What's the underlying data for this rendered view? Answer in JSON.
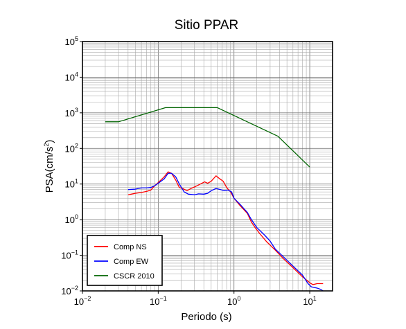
{
  "chart_data": {
    "type": "line",
    "title": "Sitio PPAR",
    "xlabel": "Periodo (s)",
    "ylabel": "PSA(cm/s²)",
    "ylabel_parts": {
      "base": "PSA(cm/s",
      "sup": "2",
      "end": ")"
    },
    "xscale": "log",
    "yscale": "log",
    "xlim": [
      0.01,
      20
    ],
    "ylim": [
      0.01,
      100000
    ],
    "grid": true,
    "legend_position": "bottom-left",
    "x_ticks": [
      {
        "value": 0.01,
        "base": "10",
        "exp": "−2"
      },
      {
        "value": 0.1,
        "base": "10",
        "exp": "−1"
      },
      {
        "value": 1,
        "base": "10",
        "exp": "0"
      },
      {
        "value": 10,
        "base": "10",
        "exp": "1"
      }
    ],
    "y_ticks": [
      {
        "value": 0.01,
        "base": "10",
        "exp": "−2"
      },
      {
        "value": 0.1,
        "base": "10",
        "exp": "−1"
      },
      {
        "value": 1,
        "base": "10",
        "exp": "0"
      },
      {
        "value": 10,
        "base": "10",
        "exp": "1"
      },
      {
        "value": 100,
        "base": "10",
        "exp": "2"
      },
      {
        "value": 1000,
        "base": "10",
        "exp": "3"
      },
      {
        "value": 10000,
        "base": "10",
        "exp": "4"
      },
      {
        "value": 100000,
        "base": "10",
        "exp": "5"
      }
    ],
    "series": [
      {
        "name": "Comp NS",
        "color": "#ff0000",
        "points": [
          [
            0.04,
            5
          ],
          [
            0.05,
            5.5
          ],
          [
            0.06,
            5.8
          ],
          [
            0.07,
            6.2
          ],
          [
            0.08,
            6.8
          ],
          [
            0.09,
            9
          ],
          [
            0.1,
            11
          ],
          [
            0.12,
            16
          ],
          [
            0.135,
            22
          ],
          [
            0.15,
            20
          ],
          [
            0.17,
            13
          ],
          [
            0.19,
            8
          ],
          [
            0.21,
            7.5
          ],
          [
            0.24,
            6.5
          ],
          [
            0.27,
            7.5
          ],
          [
            0.31,
            8.5
          ],
          [
            0.36,
            10
          ],
          [
            0.41,
            11.5
          ],
          [
            0.45,
            10.5
          ],
          [
            0.5,
            12
          ],
          [
            0.58,
            17
          ],
          [
            0.65,
            14
          ],
          [
            0.72,
            12
          ],
          [
            0.8,
            8
          ],
          [
            0.9,
            6
          ],
          [
            1,
            4
          ],
          [
            1.2,
            2.5
          ],
          [
            1.5,
            1.5
          ],
          [
            1.7,
            0.85
          ],
          [
            1.9,
            0.6
          ],
          [
            2.2,
            0.4
          ],
          [
            2.7,
            0.24
          ],
          [
            3.5,
            0.14
          ],
          [
            4.5,
            0.08
          ],
          [
            6,
            0.045
          ],
          [
            8,
            0.025
          ],
          [
            10,
            0.017
          ],
          [
            11,
            0.015
          ],
          [
            12.5,
            0.016
          ],
          [
            15,
            0.016
          ]
        ]
      },
      {
        "name": "Comp EW",
        "color": "#0000ff",
        "points": [
          [
            0.04,
            7
          ],
          [
            0.05,
            7.2
          ],
          [
            0.06,
            7.8
          ],
          [
            0.07,
            7.8
          ],
          [
            0.08,
            8
          ],
          [
            0.09,
            9
          ],
          [
            0.1,
            10.5
          ],
          [
            0.12,
            14
          ],
          [
            0.135,
            20
          ],
          [
            0.15,
            20
          ],
          [
            0.17,
            16
          ],
          [
            0.19,
            10
          ],
          [
            0.22,
            6
          ],
          [
            0.25,
            5.2
          ],
          [
            0.3,
            5
          ],
          [
            0.34,
            5.3
          ],
          [
            0.4,
            5.2
          ],
          [
            0.45,
            5.5
          ],
          [
            0.5,
            6.5
          ],
          [
            0.58,
            7.5
          ],
          [
            0.66,
            7
          ],
          [
            0.75,
            6.5
          ],
          [
            0.83,
            6.8
          ],
          [
            0.93,
            6
          ],
          [
            1,
            4
          ],
          [
            1.2,
            2.7
          ],
          [
            1.5,
            1.6
          ],
          [
            1.7,
            1
          ],
          [
            2,
            0.6
          ],
          [
            2.5,
            0.38
          ],
          [
            3,
            0.25
          ],
          [
            3.5,
            0.15
          ],
          [
            4.5,
            0.09
          ],
          [
            6,
            0.05
          ],
          [
            8,
            0.028
          ],
          [
            9.5,
            0.016
          ],
          [
            10.5,
            0.013
          ],
          [
            12.5,
            0.012
          ],
          [
            14,
            0.011
          ],
          [
            15,
            0.01
          ]
        ]
      },
      {
        "name": "CSCR 2010",
        "color": "#006400",
        "points": [
          [
            0.02,
            560
          ],
          [
            0.03,
            560
          ],
          [
            0.125,
            1400
          ],
          [
            0.6,
            1400
          ],
          [
            3.8,
            220
          ],
          [
            10,
            30
          ]
        ]
      }
    ]
  }
}
